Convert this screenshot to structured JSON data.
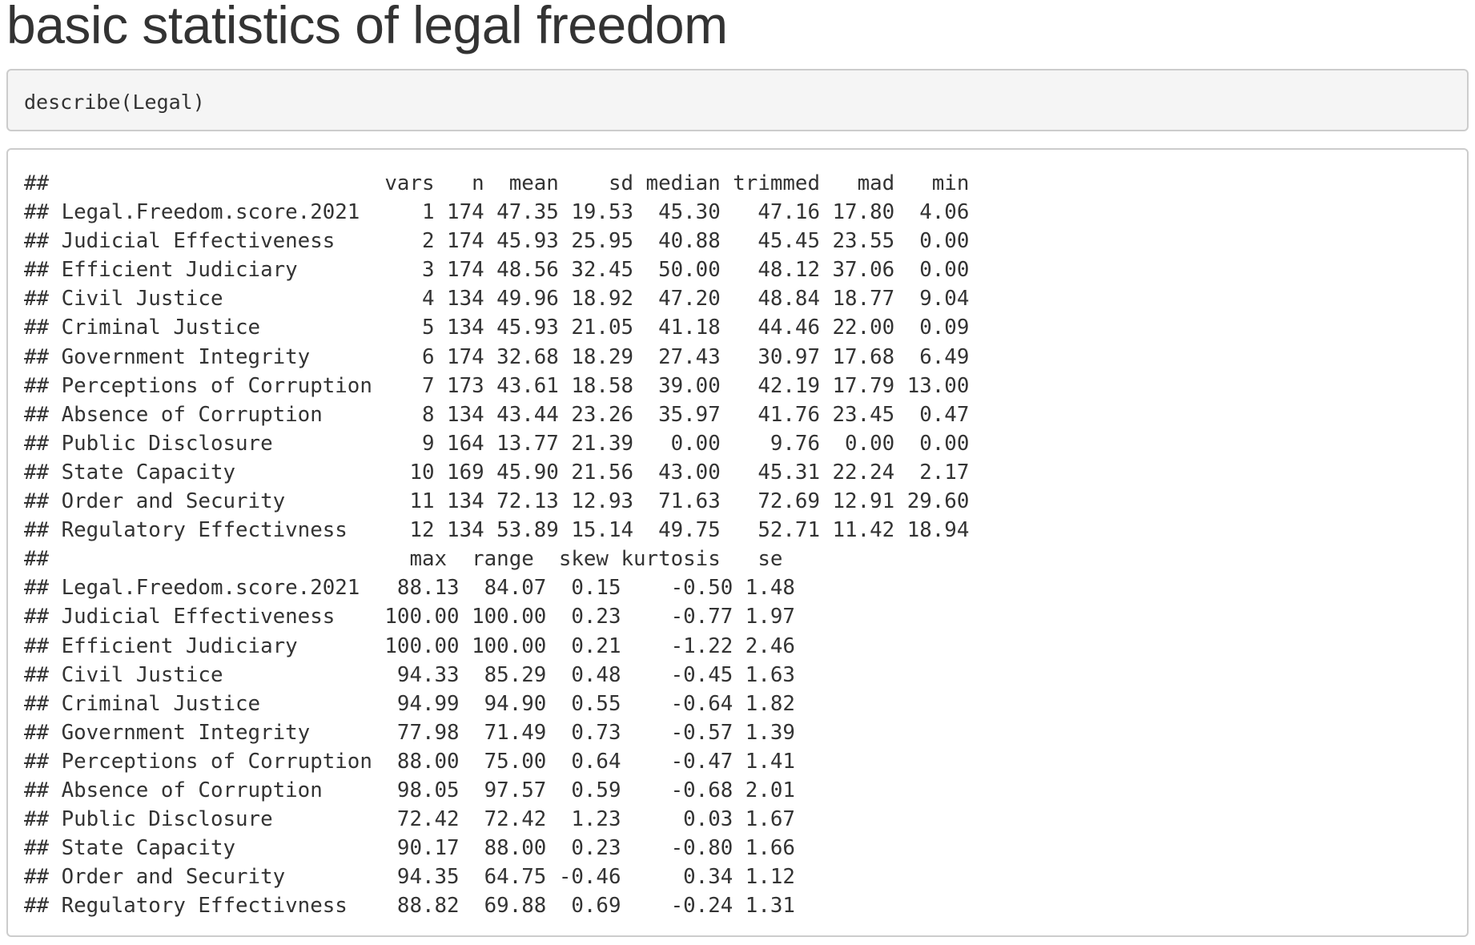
{
  "title": "basic statistics of legal freedom",
  "code": "describe(Legal)",
  "output_lines": [
    "##                           vars   n  mean    sd median trimmed   mad   min",
    "## Legal.Freedom.score.2021     1 174 47.35 19.53  45.30   47.16 17.80  4.06",
    "## Judicial Effectiveness       2 174 45.93 25.95  40.88   45.45 23.55  0.00",
    "## Efficient Judiciary          3 174 48.56 32.45  50.00   48.12 37.06  0.00",
    "## Civil Justice                4 134 49.96 18.92  47.20   48.84 18.77  9.04",
    "## Criminal Justice             5 134 45.93 21.05  41.18   44.46 22.00  0.09",
    "## Government Integrity         6 174 32.68 18.29  27.43   30.97 17.68  6.49",
    "## Perceptions of Corruption    7 173 43.61 18.58  39.00   42.19 17.79 13.00",
    "## Absence of Corruption        8 134 43.44 23.26  35.97   41.76 23.45  0.47",
    "## Public Disclosure            9 164 13.77 21.39   0.00    9.76  0.00  0.00",
    "## State Capacity              10 169 45.90 21.56  43.00   45.31 22.24  2.17",
    "## Order and Security          11 134 72.13 12.93  71.63   72.69 12.91 29.60",
    "## Regulatory Effectivness     12 134 53.89 15.14  49.75   52.71 11.42 18.94",
    "##                             max  range  skew kurtosis   se",
    "## Legal.Freedom.score.2021   88.13  84.07  0.15    -0.50 1.48",
    "## Judicial Effectiveness    100.00 100.00  0.23    -0.77 1.97",
    "## Efficient Judiciary       100.00 100.00  0.21    -1.22 2.46",
    "## Civil Justice              94.33  85.29  0.48    -0.45 1.63",
    "## Criminal Justice           94.99  94.90  0.55    -0.64 1.82",
    "## Government Integrity       77.98  71.49  0.73    -0.57 1.39",
    "## Perceptions of Corruption  88.00  75.00  0.64    -0.47 1.41",
    "## Absence of Corruption      98.05  97.57  0.59    -0.68 2.01",
    "## Public Disclosure          72.42  72.42  1.23     0.03 1.67",
    "## State Capacity             90.17  88.00  0.23    -0.80 1.66",
    "## Order and Security         94.35  64.75 -0.46     0.34 1.12",
    "## Regulatory Effectivness    88.82  69.88  0.69    -0.24 1.31"
  ]
}
